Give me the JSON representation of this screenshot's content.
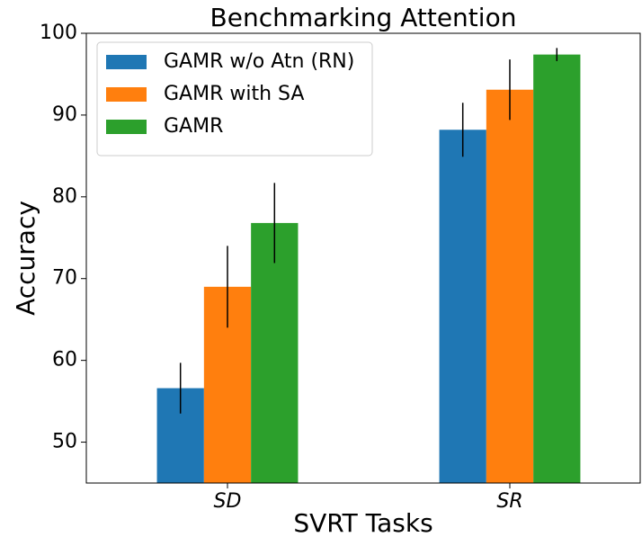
{
  "chart_data": {
    "type": "bar",
    "title": "Benchmarking Attention",
    "x_label": "SVRT Tasks",
    "y_label": "Accuracy",
    "categories": [
      "SD",
      "SR"
    ],
    "series": [
      {
        "name": "GAMR w/o Atn (RN)",
        "color": "#1f77b4",
        "values": [
          56.6,
          88.2
        ],
        "errors": [
          3.1,
          3.3
        ]
      },
      {
        "name": "GAMR with SA",
        "color": "#ff7f0e",
        "values": [
          69.0,
          93.1
        ],
        "errors": [
          5.0,
          3.7
        ]
      },
      {
        "name": "GAMR",
        "color": "#2ca02c",
        "values": [
          76.8,
          97.4
        ],
        "errors": [
          4.9,
          0.8
        ]
      }
    ],
    "ylim": [
      45,
      100
    ],
    "yticks": [
      50,
      60,
      70,
      80,
      90,
      100
    ],
    "legend": "upper left",
    "grid": false
  }
}
